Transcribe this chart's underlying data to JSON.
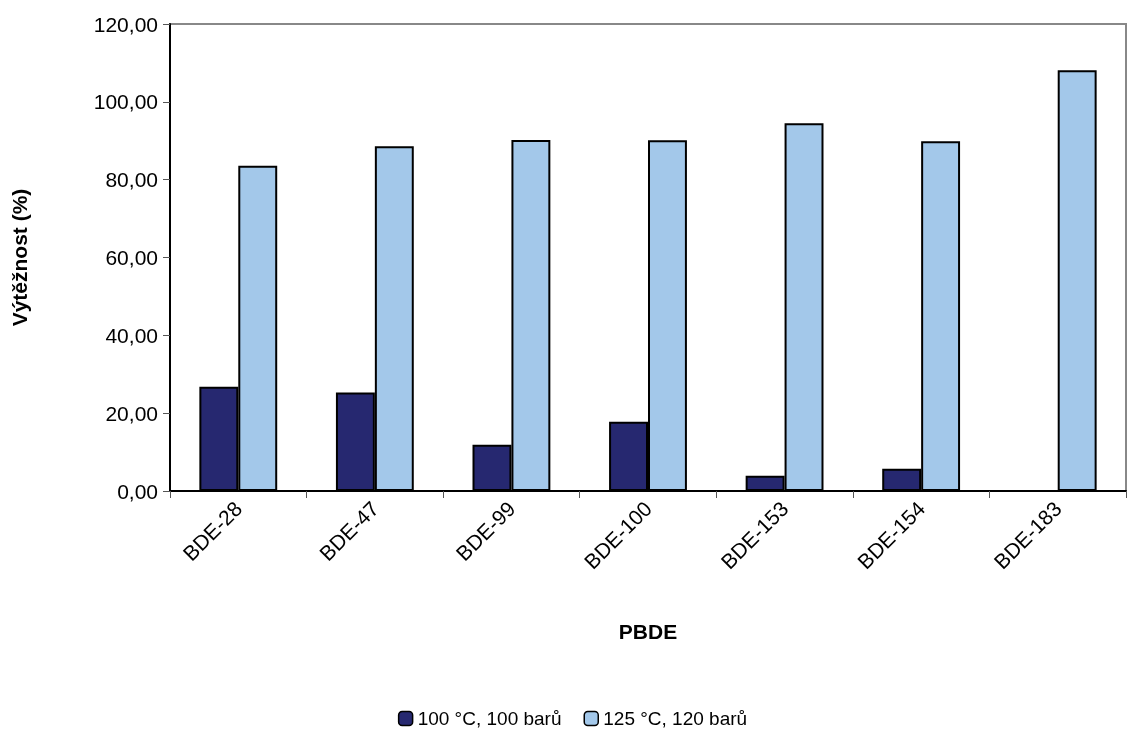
{
  "chart_data": {
    "type": "bar",
    "xlabel": "PBDE",
    "ylabel": "Výtěžnost (%)",
    "categories": [
      "BDE-28",
      "BDE-47",
      "BDE-99",
      "BDE-100",
      "BDE-153",
      "BDE-154",
      "BDE-183"
    ],
    "series": [
      {
        "name": "100 °C, 100 barů",
        "color": "#262870",
        "values": [
          26.8,
          25.3,
          11.9,
          17.8,
          3.9,
          5.7,
          null
        ]
      },
      {
        "name": "125 °C, 120 barů",
        "color": "#a3c8ea",
        "values": [
          83.6,
          88.6,
          90.2,
          90.1,
          94.5,
          89.9,
          108.1
        ]
      }
    ],
    "ylim": [
      0,
      120
    ],
    "yticks": [
      {
        "value": 0,
        "label": "0,00"
      },
      {
        "value": 20,
        "label": "20,00"
      },
      {
        "value": 40,
        "label": "40,00"
      },
      {
        "value": 60,
        "label": "60,00"
      },
      {
        "value": 80,
        "label": "80,00"
      },
      {
        "value": 100,
        "label": "100,00"
      },
      {
        "value": 120,
        "label": "120,00"
      }
    ],
    "grid": false,
    "legend": "bottom"
  }
}
